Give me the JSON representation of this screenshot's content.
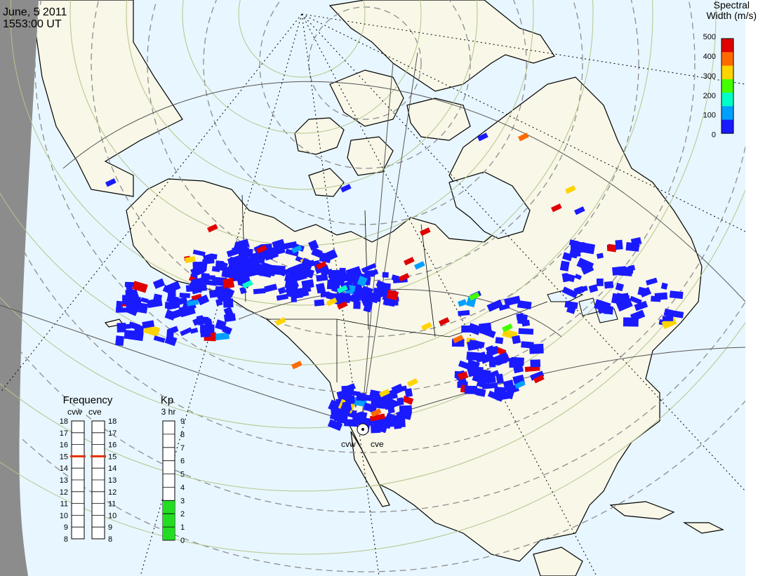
{
  "title": {
    "date": "June, 5 2011",
    "time": "1553:00 UT"
  },
  "colorbar": {
    "title_line1": "Spectral",
    "title_line2": "Width (m/s)",
    "ticks": [
      "500",
      "400",
      "300",
      "200",
      "100",
      "0"
    ],
    "colors": [
      "#e00000",
      "#ff6a00",
      "#ffd400",
      "#44ff00",
      "#00ffc8",
      "#00a0ff",
      "#1a1aff"
    ]
  },
  "frequency": {
    "title": "Frequency",
    "radar1": "cvw",
    "radar2": "cve",
    "ticks": [
      "18",
      "17",
      "16",
      "15",
      "14",
      "13",
      "12",
      "11",
      "10",
      "9",
      "8"
    ],
    "cvw_value": 15,
    "cve_value": 15,
    "marker_color": "#e03000"
  },
  "kp": {
    "title": "Kp",
    "subtitle": "3 hr",
    "ticks": [
      "9",
      "8",
      "7",
      "6",
      "5",
      "4",
      "3",
      "2",
      "1",
      "0"
    ],
    "value": 3,
    "fill_color": "#22dd22"
  },
  "site": {
    "label_west": "cvw",
    "label_east": "cve"
  },
  "map_colors": {
    "ocean": "#e8f6ff",
    "land": "#f8f7e8",
    "night": "#8c8c8c",
    "grid_geo": "#b5c48a"
  }
}
